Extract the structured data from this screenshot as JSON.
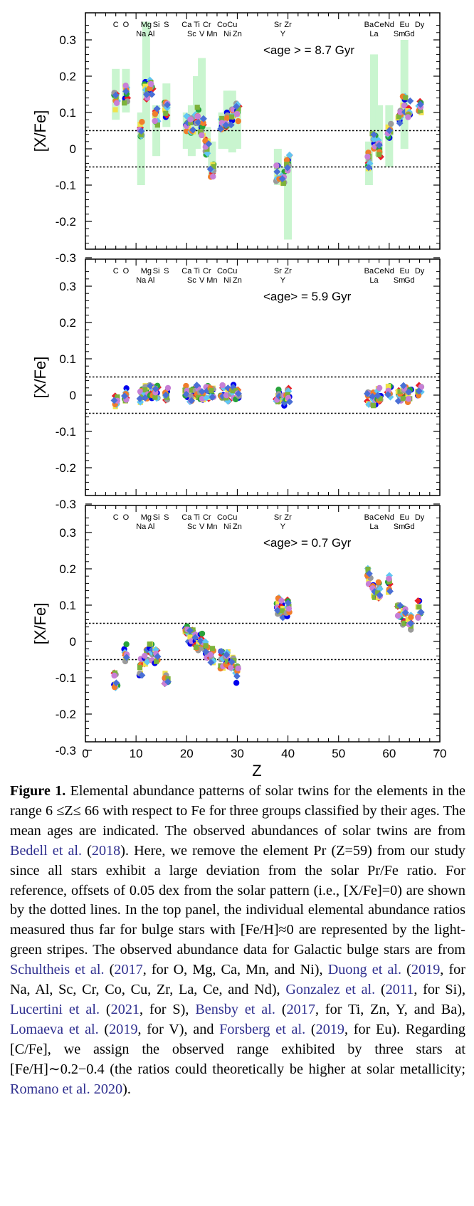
{
  "chart_data": [
    {
      "type": "scatter",
      "panel": "top",
      "ylabel": "[X/Fe]",
      "xlim": [
        0,
        70
      ],
      "ylim": [
        -0.3,
        0.35
      ],
      "yticks": [
        -0.3,
        -0.2,
        -0.1,
        0,
        0.1,
        0.2,
        0.3
      ],
      "annotation": "<age > = 8.7 Gyr",
      "reference_lines": [
        0.05,
        -0.05
      ],
      "element_labels_upper": [
        [
          6,
          "C"
        ],
        [
          8,
          "O"
        ],
        [
          12,
          "Mg"
        ],
        [
          14,
          "Si"
        ],
        [
          16,
          "S"
        ],
        [
          20,
          "Ca"
        ],
        [
          22,
          "Ti"
        ],
        [
          24,
          "Cr"
        ],
        [
          27,
          "Co"
        ],
        [
          29,
          "Cu"
        ],
        [
          38,
          "Sr"
        ],
        [
          40,
          "Zr"
        ],
        [
          56,
          "Ba"
        ],
        [
          58,
          "Ce"
        ],
        [
          60,
          "Nd"
        ],
        [
          63,
          "Eu"
        ],
        [
          66,
          "Dy"
        ]
      ],
      "element_labels_lower": [
        [
          11,
          "Na"
        ],
        [
          13,
          "Al"
        ],
        [
          21,
          "Sc"
        ],
        [
          23,
          "V"
        ],
        [
          25,
          "Mn"
        ],
        [
          28,
          "Ni"
        ],
        [
          30,
          "Zn"
        ],
        [
          39,
          "Y"
        ],
        [
          57,
          "La"
        ],
        [
          62,
          "Sm"
        ],
        [
          64,
          "Gd"
        ]
      ],
      "bulge_ranges": [
        [
          6,
          0.08,
          0.22
        ],
        [
          8,
          0.1,
          0.22
        ],
        [
          11,
          -0.1,
          0.1
        ],
        [
          12,
          0.05,
          0.35
        ],
        [
          14,
          -0.02,
          0.12
        ],
        [
          16,
          0.06,
          0.18
        ],
        [
          20,
          0.0,
          0.1
        ],
        [
          21,
          -0.02,
          0.12
        ],
        [
          22,
          0.0,
          0.2
        ],
        [
          23,
          0.05,
          0.25
        ],
        [
          24,
          -0.02,
          0.06
        ],
        [
          25,
          -0.08,
          0.02
        ],
        [
          27,
          0.0,
          0.1
        ],
        [
          28,
          0.0,
          0.16
        ],
        [
          29,
          -0.01,
          0.16
        ],
        [
          30,
          0.0,
          0.12
        ],
        [
          38,
          -0.1,
          0.0
        ],
        [
          39,
          -0.1,
          -0.05
        ],
        [
          40,
          -0.25,
          -0.02
        ],
        [
          56,
          -0.1,
          0.02
        ],
        [
          57,
          0.0,
          0.26
        ],
        [
          58,
          -0.02,
          0.12
        ],
        [
          60,
          -0.05,
          0.12
        ],
        [
          63,
          0.0,
          0.3
        ]
      ],
      "medians": [
        [
          6,
          0.13
        ],
        [
          8,
          0.15
        ],
        [
          11,
          0.05
        ],
        [
          12,
          0.16
        ],
        [
          13,
          0.17
        ],
        [
          14,
          0.09
        ],
        [
          16,
          0.11
        ],
        [
          20,
          0.07
        ],
        [
          21,
          0.06
        ],
        [
          22,
          0.09
        ],
        [
          23,
          0.06
        ],
        [
          24,
          0.0
        ],
        [
          25,
          -0.06
        ],
        [
          27,
          0.06
        ],
        [
          28,
          0.08
        ],
        [
          29,
          0.09
        ],
        [
          30,
          0.1
        ],
        [
          38,
          -0.07
        ],
        [
          39,
          -0.08
        ],
        [
          40,
          -0.04
        ],
        [
          56,
          -0.03
        ],
        [
          57,
          0.02
        ],
        [
          58,
          0.0
        ],
        [
          60,
          0.05
        ],
        [
          62,
          0.08
        ],
        [
          63,
          0.12
        ],
        [
          64,
          0.11
        ],
        [
          66,
          0.11
        ]
      ],
      "spread": 0.025
    },
    {
      "type": "scatter",
      "panel": "middle",
      "ylabel": "[X/Fe]",
      "xlim": [
        0,
        70
      ],
      "ylim": [
        -0.3,
        0.35
      ],
      "yticks": [
        -0.3,
        -0.2,
        -0.1,
        0,
        0.1,
        0.2,
        0.3
      ],
      "annotation": "<age> = 5.9 Gyr",
      "reference_lines": [
        0.05,
        -0.05
      ],
      "element_labels_upper": [
        [
          6,
          "C"
        ],
        [
          8,
          "O"
        ],
        [
          12,
          "Mg"
        ],
        [
          14,
          "Si"
        ],
        [
          16,
          "S"
        ],
        [
          20,
          "Ca"
        ],
        [
          22,
          "Ti"
        ],
        [
          24,
          "Cr"
        ],
        [
          27,
          "Co"
        ],
        [
          29,
          "Cu"
        ],
        [
          38,
          "Sr"
        ],
        [
          40,
          "Zr"
        ],
        [
          56,
          "Ba"
        ],
        [
          58,
          "Ce"
        ],
        [
          60,
          "Nd"
        ],
        [
          63,
          "Eu"
        ],
        [
          66,
          "Dy"
        ]
      ],
      "element_labels_lower": [
        [
          11,
          "Na"
        ],
        [
          13,
          "Al"
        ],
        [
          21,
          "Sc"
        ],
        [
          23,
          "V"
        ],
        [
          25,
          "Mn"
        ],
        [
          28,
          "Ni"
        ],
        [
          30,
          "Zn"
        ],
        [
          39,
          "Y"
        ],
        [
          57,
          "La"
        ],
        [
          62,
          "Sm"
        ],
        [
          64,
          "Gd"
        ]
      ],
      "medians": [
        [
          6,
          -0.02
        ],
        [
          8,
          0.0
        ],
        [
          11,
          0.0
        ],
        [
          12,
          0.01
        ],
        [
          13,
          0.01
        ],
        [
          14,
          0.01
        ],
        [
          16,
          0.0
        ],
        [
          20,
          0.01
        ],
        [
          21,
          0.0
        ],
        [
          22,
          0.01
        ],
        [
          23,
          0.0
        ],
        [
          24,
          0.01
        ],
        [
          25,
          0.0
        ],
        [
          27,
          0.01
        ],
        [
          28,
          0.0
        ],
        [
          29,
          0.01
        ],
        [
          30,
          0.0
        ],
        [
          38,
          0.0
        ],
        [
          39,
          -0.01
        ],
        [
          40,
          0.0
        ],
        [
          56,
          -0.01
        ],
        [
          57,
          -0.01
        ],
        [
          58,
          0.0
        ],
        [
          60,
          0.01
        ],
        [
          62,
          0.0
        ],
        [
          63,
          0.01
        ],
        [
          64,
          0.0
        ],
        [
          66,
          0.01
        ]
      ],
      "spread": 0.02
    },
    {
      "type": "scatter",
      "panel": "bottom",
      "ylabel": "[X/Fe]",
      "xlabel": "Z",
      "xlim": [
        0,
        70
      ],
      "xticks": [
        0,
        10,
        20,
        30,
        40,
        50,
        60,
        70
      ],
      "ylim": [
        -0.3,
        0.35
      ],
      "yticks": [
        -0.3,
        -0.2,
        -0.1,
        0,
        0.1,
        0.2,
        0.3
      ],
      "annotation": "<age> = 0.7 Gyr",
      "reference_lines": [
        0.05,
        -0.05
      ],
      "element_labels_upper": [
        [
          6,
          "C"
        ],
        [
          8,
          "O"
        ],
        [
          12,
          "Mg"
        ],
        [
          14,
          "Si"
        ],
        [
          16,
          "S"
        ],
        [
          20,
          "Ca"
        ],
        [
          22,
          "Ti"
        ],
        [
          24,
          "Cr"
        ],
        [
          27,
          "Co"
        ],
        [
          29,
          "Cu"
        ],
        [
          38,
          "Sr"
        ],
        [
          40,
          "Zr"
        ],
        [
          56,
          "Ba"
        ],
        [
          58,
          "Ce"
        ],
        [
          60,
          "Nd"
        ],
        [
          63,
          "Eu"
        ],
        [
          66,
          "Dy"
        ]
      ],
      "element_labels_lower": [
        [
          11,
          "Na"
        ],
        [
          13,
          "Al"
        ],
        [
          21,
          "Sc"
        ],
        [
          23,
          "V"
        ],
        [
          25,
          "Mn"
        ],
        [
          28,
          "Ni"
        ],
        [
          30,
          "Zn"
        ],
        [
          39,
          "Y"
        ],
        [
          57,
          "La"
        ],
        [
          62,
          "Sm"
        ],
        [
          64,
          "Gd"
        ]
      ],
      "medians": [
        [
          6,
          -0.11
        ],
        [
          8,
          -0.03
        ],
        [
          11,
          -0.07
        ],
        [
          12,
          -0.04
        ],
        [
          13,
          -0.03
        ],
        [
          14,
          -0.04
        ],
        [
          16,
          -0.1
        ],
        [
          20,
          0.02
        ],
        [
          21,
          0.01
        ],
        [
          22,
          0.0
        ],
        [
          23,
          0.0
        ],
        [
          24,
          -0.02
        ],
        [
          25,
          -0.04
        ],
        [
          27,
          -0.05
        ],
        [
          28,
          -0.05
        ],
        [
          29,
          -0.06
        ],
        [
          30,
          -0.09
        ],
        [
          38,
          0.1
        ],
        [
          39,
          0.09
        ],
        [
          40,
          0.09
        ],
        [
          56,
          0.18
        ],
        [
          57,
          0.14
        ],
        [
          58,
          0.14
        ],
        [
          60,
          0.16
        ],
        [
          62,
          0.08
        ],
        [
          63,
          0.07
        ],
        [
          64,
          0.05
        ],
        [
          66,
          0.09
        ]
      ],
      "spread": 0.025
    }
  ],
  "colors": {
    "band": "#c9f5cf",
    "dots": [
      "#0000ee",
      "#e8202a",
      "#27a33b",
      "#f0e34a",
      "#9a9a9a",
      "#60c6f3",
      "#f07d2b",
      "#7db23b",
      "#c77fd6",
      "#4a6fd6"
    ]
  },
  "caption": {
    "label": "Figure 1.",
    "segments": [
      {
        "t": " Elemental abundance patterns of solar twins for the elements in the range 6 ≤Z≤ 66 with respect to Fe for three groups classified by their ages. The mean ages are indicated. The observed abundances of solar twins are from "
      },
      {
        "c": "Bedell et al."
      },
      {
        "t": " ("
      },
      {
        "c": "2018"
      },
      {
        "t": "). Here, we remove the element Pr (Z=59) from our study since all stars exhibit a large deviation from the solar Pr/Fe ratio. For reference, offsets of 0.05 dex from the solar pattern (i.e., [X/Fe]=0) are shown by the dotted lines. In the top panel, the individual elemental abundance ratios measured thus far for bulge stars with [Fe/H]≈0 are represented by the light-green stripes. The observed abundance data for Galactic bulge stars are from "
      },
      {
        "c": "Schultheis et al."
      },
      {
        "t": " ("
      },
      {
        "c": "2017"
      },
      {
        "t": ", for O, Mg, Ca, Mn, and Ni), "
      },
      {
        "c": "Duong et al."
      },
      {
        "t": " ("
      },
      {
        "c": "2019"
      },
      {
        "t": ", for Na, Al, Sc, Cr, Co, Cu, Zr, La, Ce, and Nd), "
      },
      {
        "c": "Gonzalez et al."
      },
      {
        "t": " ("
      },
      {
        "c": "2011"
      },
      {
        "t": ", for Si), "
      },
      {
        "c": "Lucertini et al."
      },
      {
        "t": " ("
      },
      {
        "c": "2021"
      },
      {
        "t": ", for S), "
      },
      {
        "c": "Bensby et al."
      },
      {
        "t": " ("
      },
      {
        "c": "2017"
      },
      {
        "t": ", for Ti, Zn, Y, and Ba), "
      },
      {
        "c": "Lomaeva et al."
      },
      {
        "t": " ("
      },
      {
        "c": "2019"
      },
      {
        "t": ", for V), and "
      },
      {
        "c": "Forsberg et al."
      },
      {
        "t": " ("
      },
      {
        "c": "2019"
      },
      {
        "t": ", for Eu). Regarding [C/Fe], we assign the observed range exhibited by three stars at [Fe/H]∼0.2−0.4 (the ratios could theoretically be higher at solar metallicity; "
      },
      {
        "c": "Romano et al. 2020"
      },
      {
        "t": ")."
      }
    ]
  }
}
